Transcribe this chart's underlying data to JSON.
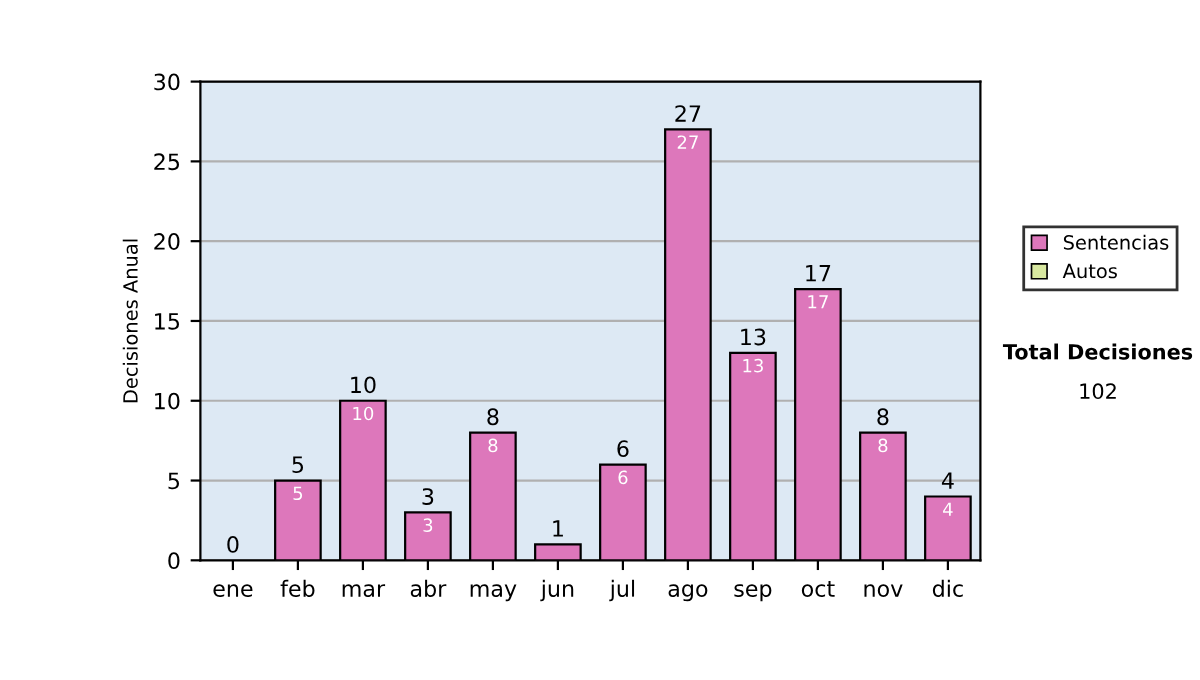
{
  "chart_data": {
    "type": "bar",
    "ylabel": "Decisiones Anual",
    "categories": [
      "ene",
      "feb",
      "mar",
      "abr",
      "may",
      "jun",
      "jul",
      "ago",
      "sep",
      "oct",
      "nov",
      "dic"
    ],
    "series": [
      {
        "name": "Sentencias",
        "color": "#dd77bb",
        "values": [
          0,
          5,
          10,
          3,
          8,
          1,
          6,
          27,
          13,
          17,
          8,
          4
        ],
        "value_labels": [
          null,
          "5",
          "10",
          "3",
          "8",
          null,
          "6",
          "27",
          "13",
          "17",
          "8",
          "4"
        ]
      },
      {
        "name": "Autos",
        "color": "#d8e8a0",
        "values": [
          0,
          0,
          0,
          0,
          0,
          0,
          0,
          0,
          0,
          0,
          0,
          0
        ]
      }
    ],
    "stacked": true,
    "totals": [
      "0",
      "5",
      "10",
      "3",
      "8",
      "1",
      "6",
      "27",
      "13",
      "17",
      "8",
      "4"
    ],
    "ylim": [
      0,
      30
    ],
    "yticks": [
      0,
      5,
      10,
      15,
      20,
      25,
      30
    ],
    "grid": "y",
    "legend": "right",
    "annotations": [
      "Total Decisiones",
      "102"
    ]
  }
}
